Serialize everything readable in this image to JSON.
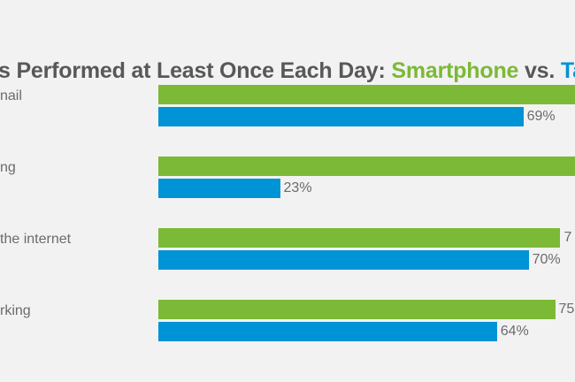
{
  "chart_data": {
    "type": "bar",
    "orientation": "horizontal",
    "title": {
      "prefix": "s Performed at Least Once Each Day: ",
      "series1": "Smartphone",
      "middle": " vs. ",
      "series2": "Ta"
    },
    "categories": [
      "nail",
      "ng",
      "the internet",
      "rking"
    ],
    "series": [
      {
        "name": "Smartphone",
        "color": "#7cb936",
        "values": [
          null,
          null,
          76,
          75
        ],
        "labels": [
          "",
          "",
          "7",
          "75"
        ]
      },
      {
        "name": "Tablet",
        "color": "#0093d6",
        "values": [
          69,
          23,
          70,
          64
        ],
        "labels": [
          "69%",
          "23%",
          "70%",
          "64%"
        ]
      }
    ],
    "xlim": [
      0,
      100
    ],
    "grid": false,
    "note_clipped": "Image is cropped on left and right; Smartphone bars for first two categories extend past the right edge"
  }
}
